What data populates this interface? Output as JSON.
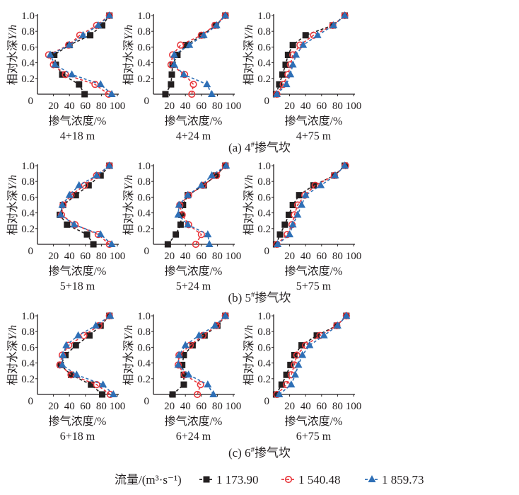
{
  "chart_data": {
    "type": "line",
    "x_label": "掺气浓度/%",
    "y_label_prefix": "相对水深",
    "y_label_var": "Y/h",
    "xlim": [
      0,
      100
    ],
    "ylim": [
      0,
      1.0
    ],
    "x_ticks": [
      "0",
      "20",
      "40",
      "60",
      "80",
      "100"
    ],
    "y_ticks": [
      "0",
      "0.2",
      "0.4",
      "0.6",
      "0.8",
      "1.0"
    ],
    "y_levels": [
      0,
      0.125,
      0.25,
      0.375,
      0.5,
      0.625,
      0.75,
      0.875,
      1.0
    ],
    "groups": [
      {
        "caption_pre": "(a) 4",
        "caption_sup": "#",
        "caption_post": "掺气坎"
      },
      {
        "caption_pre": "(b) 5",
        "caption_sup": "#",
        "caption_post": "掺气坎"
      },
      {
        "caption_pre": "(c) 6",
        "caption_sup": "#",
        "caption_post": "掺气坎"
      }
    ],
    "legend": {
      "title": "流量/(m³·s⁻¹)",
      "entries": [
        {
          "name": "1 173.90",
          "color": "#231f20",
          "marker": "square"
        },
        {
          "name": "1 540.48",
          "color": "#e8383d",
          "marker": "open-circle"
        },
        {
          "name": "1 859.73",
          "color": "#2e6fb6",
          "marker": "triangle"
        }
      ]
    },
    "panels": [
      {
        "title": "4+18 m",
        "series": [
          [
            59,
            52,
            31,
            23,
            21,
            40,
            66,
            81,
            90
          ],
          [
            89,
            72,
            35,
            20,
            14,
            39,
            53,
            74,
            90
          ],
          [
            93,
            79,
            43,
            22,
            16,
            40,
            57,
            76,
            90
          ]
        ]
      },
      {
        "title": "4+24 m",
        "series": [
          [
            15,
            22,
            23,
            24,
            30,
            41,
            61,
            78,
            90
          ],
          [
            48,
            50,
            39,
            22,
            24,
            34,
            60,
            77,
            90
          ],
          [
            73,
            67,
            38,
            26,
            26,
            45,
            63,
            79,
            90
          ]
        ]
      },
      {
        "title": "4+75 m",
        "series": [
          [
            3,
            7,
            11,
            15,
            18,
            24,
            40,
            74,
            89
          ],
          [
            4,
            12,
            18,
            21,
            24,
            33,
            50,
            74,
            89
          ],
          [
            4,
            16,
            21,
            24,
            28,
            37,
            55,
            75,
            89
          ]
        ]
      },
      {
        "title": "5+18 m",
        "series": [
          [
            70,
            62,
            37,
            28,
            32,
            48,
            64,
            79,
            90
          ],
          [
            90,
            76,
            47,
            30,
            32,
            42,
            59,
            74,
            90
          ],
          [
            93,
            79,
            46,
            29,
            31,
            40,
            52,
            74,
            90
          ]
        ]
      },
      {
        "title": "5+24 m",
        "series": [
          [
            18,
            28,
            34,
            35,
            37,
            43,
            63,
            78,
            90
          ],
          [
            53,
            60,
            44,
            36,
            33,
            44,
            62,
            79,
            90
          ],
          [
            70,
            68,
            43,
            31,
            32,
            43,
            60,
            73,
            91
          ]
        ]
      },
      {
        "title": "5+75 m",
        "series": [
          [
            3,
            8,
            14,
            19,
            24,
            32,
            50,
            76,
            89
          ],
          [
            4,
            17,
            23,
            26,
            30,
            39,
            52,
            76,
            90
          ],
          [
            5,
            20,
            24,
            30,
            35,
            40,
            59,
            77,
            89
          ]
        ]
      },
      {
        "title": "6+18 m",
        "series": [
          [
            81,
            67,
            42,
            29,
            35,
            48,
            65,
            79,
            90
          ],
          [
            91,
            74,
            42,
            28,
            31,
            39,
            58,
            77,
            90
          ],
          [
            95,
            82,
            49,
            31,
            32,
            36,
            51,
            73,
            91
          ]
        ]
      },
      {
        "title": "6+24 m",
        "series": [
          [
            24,
            38,
            38,
            36,
            38,
            49,
            64,
            80,
            90
          ],
          [
            55,
            59,
            39,
            31,
            32,
            46,
            62,
            79,
            90
          ],
          [
            75,
            68,
            44,
            31,
            32,
            40,
            57,
            77,
            90
          ]
        ]
      },
      {
        "title": "6+75 m",
        "series": [
          [
            3,
            10,
            16,
            21,
            26,
            35,
            54,
            79,
            91
          ],
          [
            4,
            16,
            22,
            26,
            29,
            40,
            58,
            79,
            91
          ],
          [
            7,
            22,
            27,
            31,
            36,
            45,
            63,
            80,
            91
          ]
        ]
      }
    ]
  }
}
